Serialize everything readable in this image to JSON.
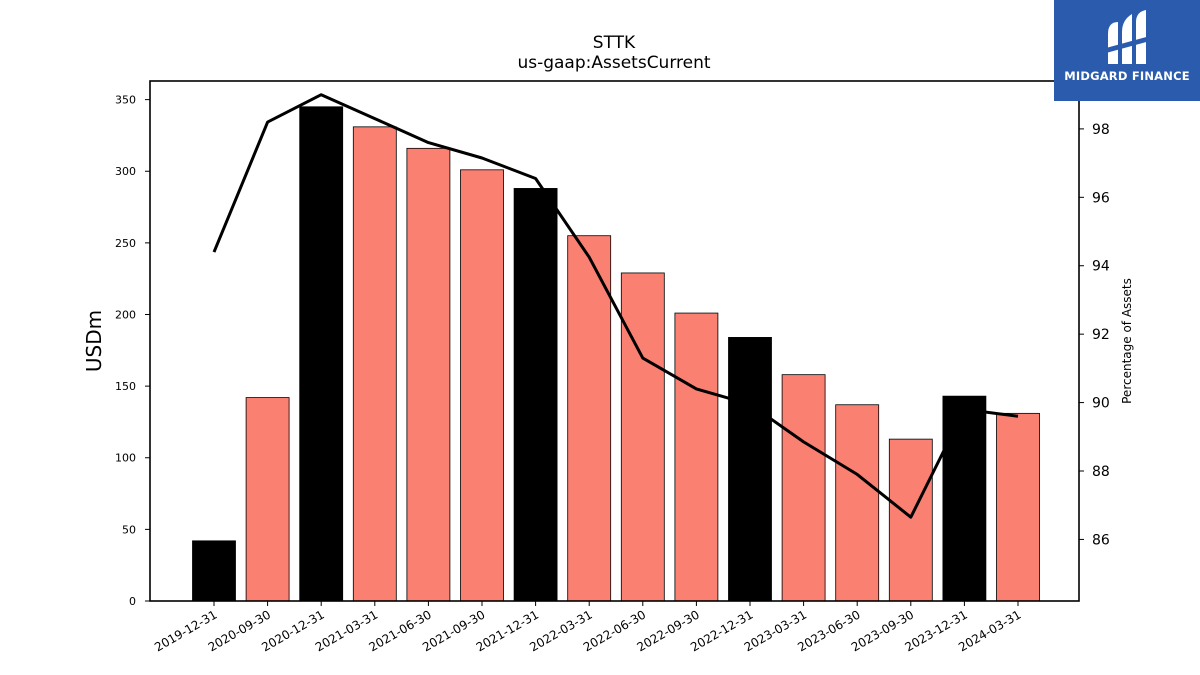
{
  "brand": {
    "name": "MIDGARD FINANCE"
  },
  "chart_data": {
    "type": "bar",
    "title": "STTK",
    "subtitle": "us-gaap:AssetsCurrent",
    "ylabel": "USDm",
    "y2label": "Percentage of Assets",
    "categories": [
      "2019-12-31",
      "2020-09-30",
      "2020-12-31",
      "2021-03-31",
      "2021-06-30",
      "2021-09-30",
      "2021-12-31",
      "2022-03-31",
      "2022-06-30",
      "2022-09-30",
      "2022-12-31",
      "2023-03-31",
      "2023-06-30",
      "2023-09-30",
      "2023-12-31",
      "2024-03-31"
    ],
    "values": [
      42,
      142,
      345,
      331,
      316,
      301,
      288,
      255,
      229,
      201,
      184,
      158,
      137,
      113,
      143,
      131
    ],
    "bar_colors": [
      "#000000",
      "#fa8072",
      "#000000",
      "#fa8072",
      "#fa8072",
      "#fa8072",
      "#000000",
      "#fa8072",
      "#fa8072",
      "#fa8072",
      "#000000",
      "#fa8072",
      "#fa8072",
      "#fa8072",
      "#000000",
      "#fa8072"
    ],
    "line_series": {
      "values": [
        94.4,
        98.2,
        99.0,
        98.3,
        97.6,
        97.15,
        96.55,
        94.25,
        91.3,
        90.4,
        89.95,
        88.85,
        87.9,
        86.65,
        89.8,
        89.6
      ],
      "color": "#000000"
    },
    "ylim": [
      0,
      363
    ],
    "y2lim": [
      84.2,
      99.4
    ],
    "yticks": [
      0,
      50,
      100,
      150,
      200,
      250,
      300,
      350
    ],
    "y2ticks": [
      86,
      88,
      90,
      92,
      94,
      96,
      98
    ],
    "grid": false
  }
}
